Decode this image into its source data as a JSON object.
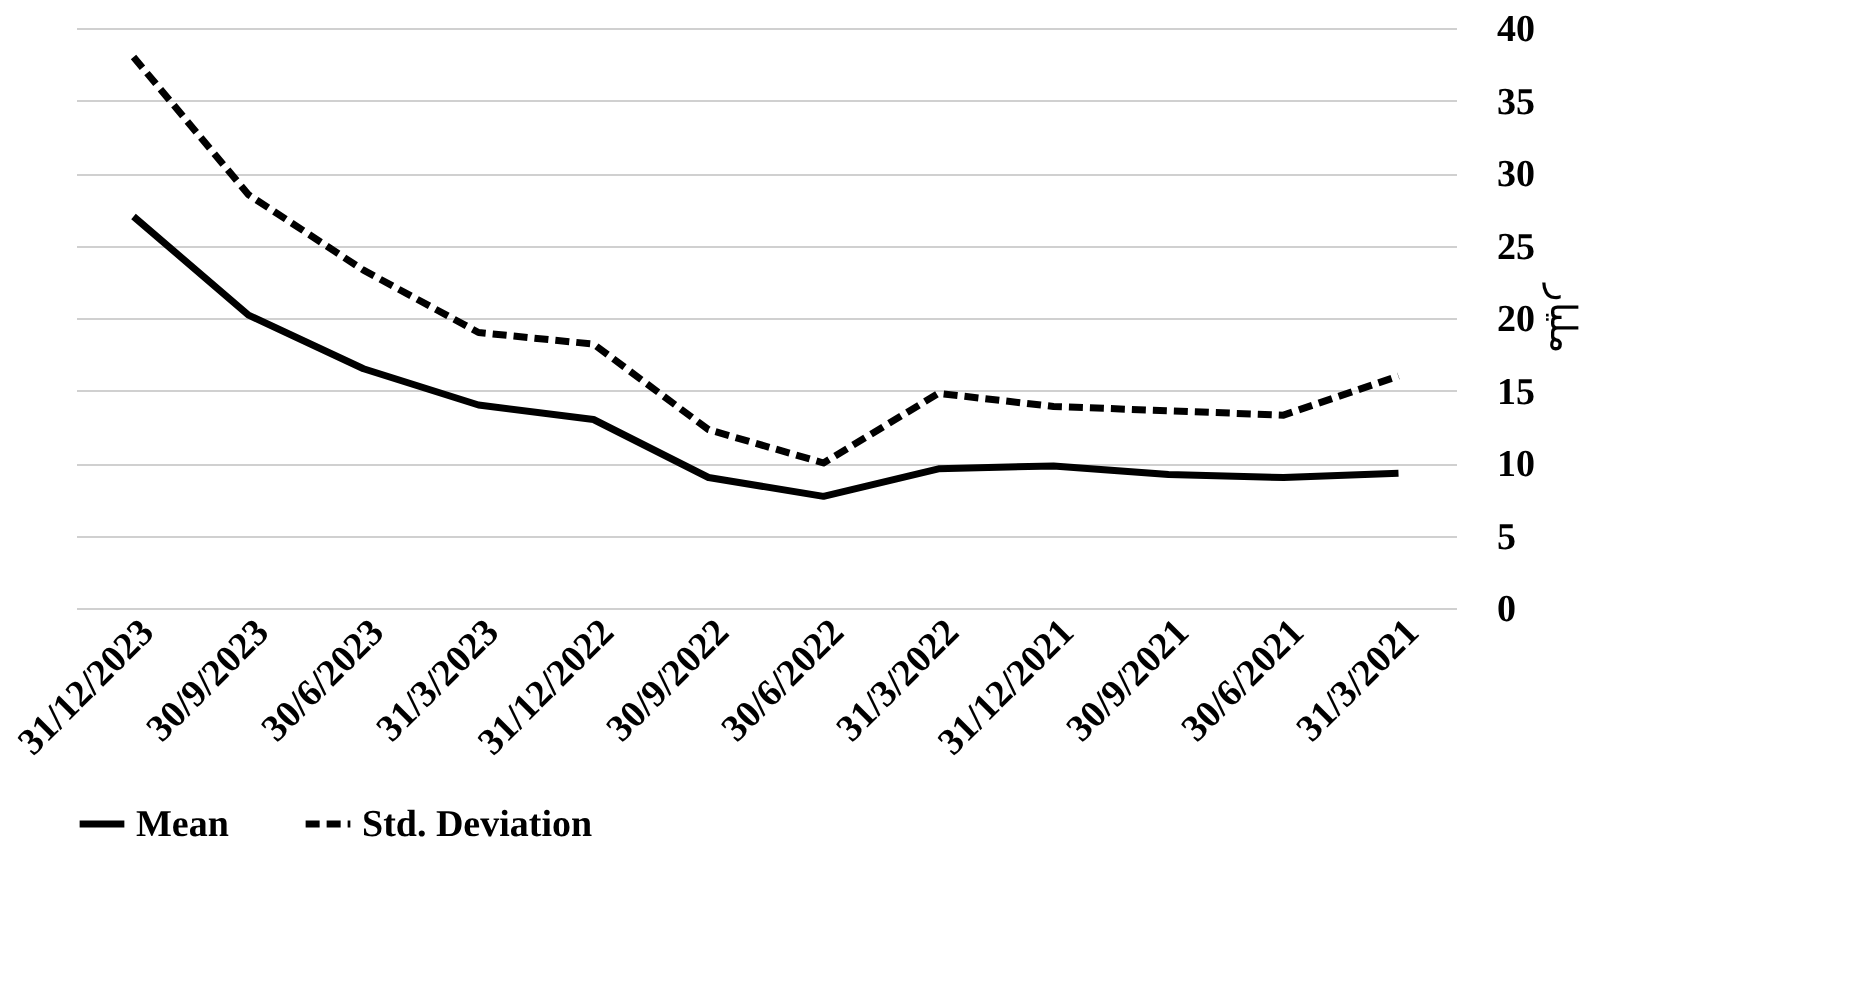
{
  "chart_data": {
    "type": "line",
    "categories": [
      "31/12/2023",
      "30/9/2023",
      "30/6/2023",
      "31/3/2023",
      "31/12/2022",
      "30/9/2022",
      "30/6/2022",
      "31/3/2022",
      "31/12/2021",
      "30/9/2021",
      "30/6/2021",
      "31/3/2021"
    ],
    "series": [
      {
        "name": "Mean",
        "color": "#000000",
        "line_style": "solid",
        "values": [
          27,
          20.2,
          16.5,
          14,
          13,
          9,
          7.7,
          9.6,
          9.8,
          9.2,
          9,
          9.3
        ]
      },
      {
        "name": "Std. Deviation",
        "color": "#000000",
        "line_style": "dashed",
        "values": [
          38,
          28.5,
          23.3,
          19,
          18.2,
          12.3,
          10,
          14.8,
          13.9,
          13.6,
          13.3,
          16
        ]
      }
    ],
    "y2label": "مليار",
    "ylim": [
      0,
      40
    ],
    "yticks": [
      0,
      5,
      10,
      15,
      20,
      25,
      30,
      35,
      40
    ],
    "grid": "y",
    "legend": "bottom",
    "marker": "none"
  }
}
